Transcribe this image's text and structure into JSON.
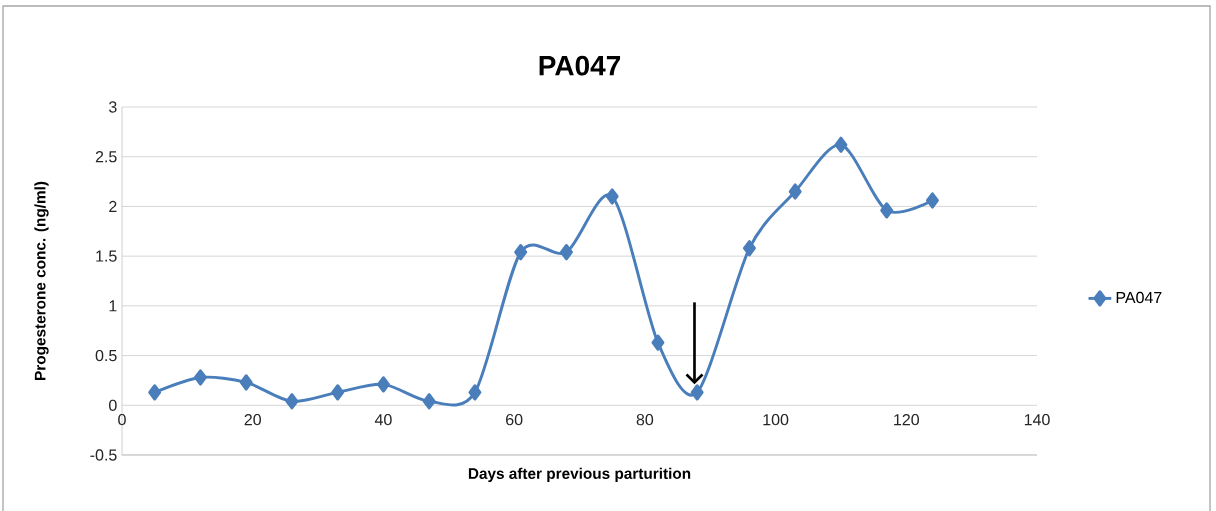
{
  "chart_data": {
    "type": "line",
    "title": "PA047",
    "xlabel": "Days after previous parturition",
    "ylabel": "Progesterone conc. (ng/ml)",
    "x": [
      5,
      12,
      19,
      26,
      33,
      40,
      47,
      54,
      61,
      68,
      75,
      82,
      88,
      96,
      103,
      110,
      117,
      124
    ],
    "series": [
      {
        "name": "PA047",
        "color": "#4a7ebb",
        "values": [
          0.13,
          0.28,
          0.23,
          0.04,
          0.13,
          0.21,
          0.04,
          0.13,
          1.54,
          1.54,
          2.1,
          0.63,
          0.13,
          1.58,
          2.15,
          2.62,
          1.96,
          2.06
        ]
      }
    ],
    "xlim": [
      0,
      140
    ],
    "xticks": [
      0,
      20,
      40,
      60,
      80,
      100,
      120,
      140
    ],
    "ylim": [
      -0.5,
      3
    ],
    "yticks": [
      -0.5,
      0,
      0.5,
      1,
      1.5,
      2,
      2.5,
      3
    ],
    "grid": "y",
    "legend": "right",
    "marker": "diamond",
    "line_style": "solid"
  }
}
